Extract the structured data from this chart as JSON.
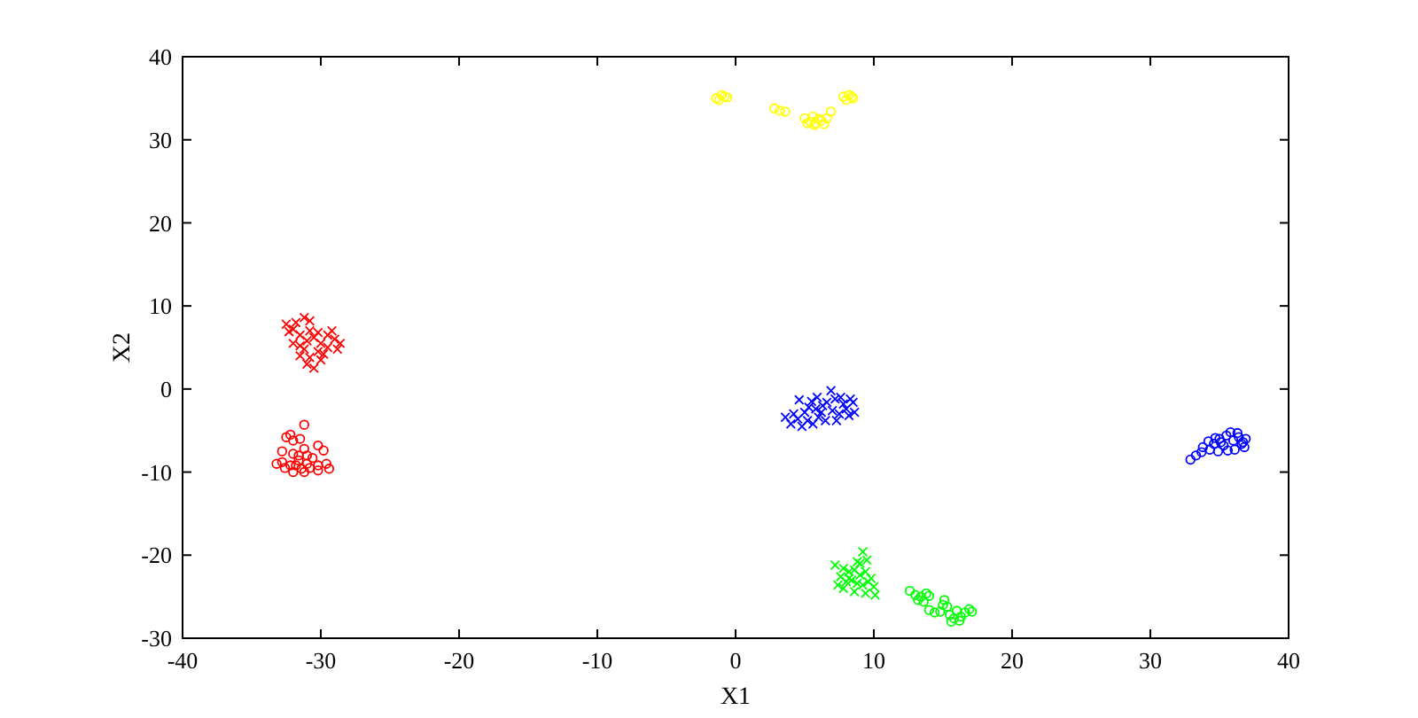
{
  "chart_data": {
    "type": "scatter",
    "xlabel": "X1",
    "ylabel": "X2",
    "xlim": [
      -40,
      40
    ],
    "ylim": [
      -30,
      40
    ],
    "xticks": [
      -40,
      -30,
      -20,
      -10,
      0,
      10,
      20,
      30,
      40
    ],
    "yticks": [
      -30,
      -20,
      -10,
      0,
      10,
      20,
      30,
      40
    ],
    "series": [
      {
        "color": "#ff0000",
        "marker": "cross",
        "x": [
          -32.5,
          -32,
          -31.8,
          -31.2,
          -32.3,
          -31.5,
          -30.8,
          -31,
          -30.5,
          -30,
          -29.5,
          -29,
          -29.5,
          -28.8,
          -30.2,
          -31.2,
          -31.5,
          -30.8,
          -30,
          -31,
          -30.5,
          -29.8,
          -32,
          -31.5,
          -29.2,
          -30.8,
          -28.6,
          -30.2
        ],
        "values": [
          7.8,
          7.2,
          8,
          8.6,
          6.9,
          6.5,
          7,
          5.8,
          6.2,
          5.5,
          6.5,
          6,
          5,
          4.8,
          4.5,
          4.8,
          4,
          3.8,
          3.5,
          3,
          2.5,
          4.2,
          5.5,
          5.2,
          7,
          8.2,
          5.5,
          6.8
        ]
      },
      {
        "color": "#ff0000",
        "marker": "circle",
        "x": [
          -31.2,
          -32.5,
          -32,
          -31.5,
          -32.2,
          -32.8,
          -32,
          -31.2,
          -30.2,
          -29.8,
          -32.8,
          -32.2,
          -31.6,
          -31,
          -31.4,
          -30.6,
          -30.2,
          -29.6,
          -29.4,
          -30.2,
          -31.2,
          -32,
          -32.6,
          -31.6,
          -31.8,
          -30.8,
          -33.2,
          -31
        ],
        "values": [
          -4.3,
          -5.8,
          -6.2,
          -6,
          -5.5,
          -7.5,
          -7.8,
          -7.2,
          -6.8,
          -7.4,
          -8.8,
          -9.2,
          -8.6,
          -9,
          -9.6,
          -8.3,
          -9.2,
          -9,
          -9.6,
          -9.8,
          -10,
          -10,
          -9.5,
          -8,
          -9.2,
          -9.5,
          -9,
          -8
        ]
      },
      {
        "color": "#0000ff",
        "marker": "cross",
        "x": [
          4,
          4.5,
          4.8,
          5.2,
          5,
          4.6,
          5.5,
          5.8,
          6,
          6.3,
          6.6,
          6.9,
          7.2,
          7,
          7.5,
          7.8,
          8,
          8.3,
          8.5,
          8.2,
          6.5,
          5.6,
          4.2,
          5.9,
          7.6,
          8.6,
          6.2,
          7.3,
          3.6,
          5.3
        ],
        "values": [
          -4.2,
          -3.6,
          -4.5,
          -3.8,
          -2.8,
          -1.3,
          -1.5,
          -2.4,
          -3.4,
          -2,
          -1.6,
          -0.2,
          -1.2,
          -2.6,
          -3,
          -1.8,
          -2.4,
          -1.2,
          -1.6,
          -3.2,
          -3.8,
          -4.2,
          -3,
          -1,
          -1,
          -2.8,
          -2.8,
          -3.8,
          -3.4,
          -2.2
        ]
      },
      {
        "color": "#0000ff",
        "marker": "circle",
        "x": [
          32.9,
          33.3,
          33.7,
          33.8,
          34.3,
          34.6,
          34.9,
          35,
          35.3,
          35.5,
          35.8,
          36,
          36.1,
          36.4,
          36.6,
          36.8,
          36.9,
          35.6,
          34.2,
          36.3,
          35.1,
          36.7,
          34.7
        ],
        "values": [
          -8.5,
          -8,
          -7.6,
          -7,
          -7.3,
          -6.6,
          -7.5,
          -6,
          -6.8,
          -5.6,
          -5.2,
          -6.2,
          -7.3,
          -5.8,
          -6.6,
          -7,
          -6,
          -7.4,
          -6.3,
          -5.3,
          -6.4,
          -6.4,
          -5.9
        ]
      },
      {
        "color": "#00ff00",
        "marker": "cross",
        "x": [
          9.2,
          8.8,
          9.5,
          7.2,
          7.8,
          8.2,
          8.6,
          9,
          9.4,
          9.8,
          7.6,
          8,
          8.4,
          8.8,
          9.2,
          9.6,
          10,
          7.8,
          8.6,
          9.4,
          10.1,
          8.2,
          9,
          7.4
        ],
        "values": [
          -19.6,
          -20.8,
          -20.6,
          -21.2,
          -21.6,
          -22,
          -21.8,
          -22.4,
          -22,
          -22.8,
          -22.6,
          -23.2,
          -23,
          -23.4,
          -23.6,
          -23.2,
          -23.8,
          -24,
          -24.4,
          -24.6,
          -24.8,
          -22.8,
          -21,
          -23.6
        ]
      },
      {
        "color": "#00ff00",
        "marker": "circle",
        "x": [
          12.6,
          13,
          13.4,
          13.8,
          13.2,
          13.6,
          14,
          14.8,
          15.1,
          15.3,
          15.5,
          15.8,
          16,
          16.3,
          16.6,
          16.9,
          15,
          14.4,
          16.2,
          15.6,
          17.1,
          14
        ],
        "values": [
          -24.3,
          -24.8,
          -25,
          -24.6,
          -25.4,
          -25.6,
          -24.9,
          -26.8,
          -25.4,
          -26.2,
          -27.2,
          -27.6,
          -26.7,
          -27.4,
          -26.9,
          -26.5,
          -26,
          -26.9,
          -27.9,
          -28,
          -26.8,
          -26.6
        ]
      },
      {
        "color": "#ffff00",
        "marker": "circle",
        "x": [
          -1.4,
          -1,
          -0.6,
          -1.2,
          -0.8,
          2.8,
          3.2,
          3.6,
          5,
          5.4,
          5.8,
          6.2,
          6.6,
          5.6,
          6,
          5.2,
          6.4,
          6.9,
          5.7,
          7.8,
          8.2,
          8.5,
          8,
          8.4
        ],
        "values": [
          35,
          35.4,
          35.1,
          34.8,
          35.2,
          33.8,
          33.5,
          33.4,
          32.6,
          32.2,
          32,
          32.3,
          32.6,
          32.8,
          32.5,
          32,
          31.9,
          33.4,
          31.8,
          35.2,
          35.4,
          35,
          34.8,
          35.2
        ]
      }
    ]
  }
}
